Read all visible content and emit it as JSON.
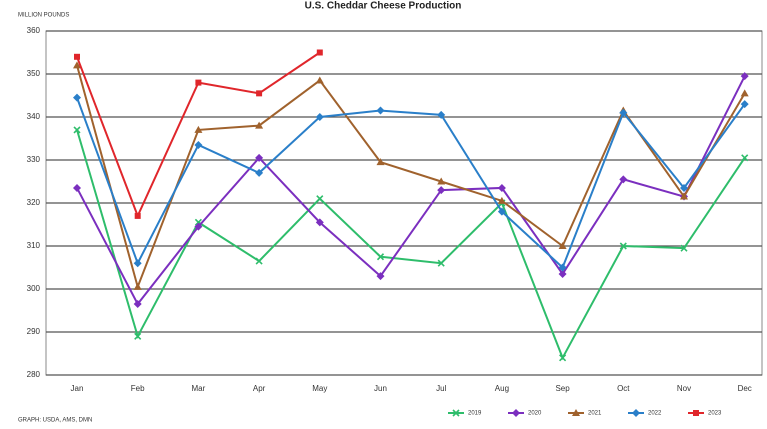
{
  "chart_data": {
    "type": "line",
    "title": "U.S. Cheddar Cheese Production",
    "y_label": "MILLION POUNDS",
    "source": "GRAPH: USDA, AMS, DMN",
    "categories": [
      "Jan",
      "Feb",
      "Mar",
      "Apr",
      "May",
      "Jun",
      "Jul",
      "Aug",
      "Sep",
      "Oct",
      "Nov",
      "Dec"
    ],
    "series": [
      {
        "name": "2019",
        "color": "#2ebd6b",
        "marker": "cross",
        "values": [
          337,
          289,
          315.5,
          306.5,
          321,
          307.5,
          306,
          320,
          284,
          310,
          309.5,
          330.5
        ]
      },
      {
        "name": "2020",
        "color": "#7b2fbf",
        "marker": "diamond",
        "values": [
          323.5,
          296.5,
          314.5,
          330.5,
          315.5,
          303,
          323,
          323.5,
          303.5,
          325.5,
          321.5,
          349.5
        ]
      },
      {
        "name": "2021",
        "color": "#a0622d",
        "marker": "triangle",
        "values": [
          352,
          300.5,
          337,
          338,
          348.5,
          329.5,
          325,
          320.5,
          310,
          341.5,
          321.5,
          345.5
        ]
      },
      {
        "name": "2022",
        "color": "#2a7fc9",
        "marker": "diamond",
        "values": [
          344.5,
          306,
          333.5,
          327,
          340,
          341.5,
          340.5,
          318,
          305,
          341,
          323.5,
          343
        ]
      },
      {
        "name": "2023",
        "color": "#e0262b",
        "marker": "square",
        "values": [
          354,
          317,
          348,
          345.5,
          355,
          null,
          null,
          null,
          null,
          null,
          null,
          null
        ]
      }
    ],
    "ylim": [
      280,
      360
    ],
    "yticks": [
      280,
      290,
      300,
      310,
      320,
      330,
      340,
      350,
      360
    ],
    "grid": true,
    "legend": "bottom-right"
  }
}
